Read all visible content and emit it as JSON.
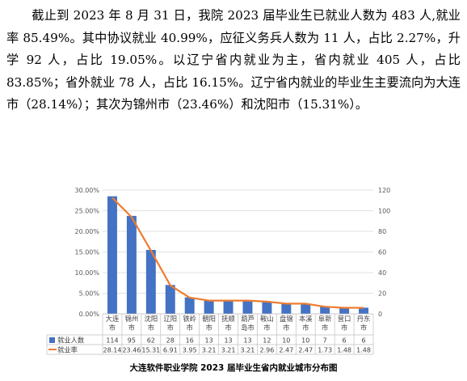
{
  "document": {
    "paragraph": "截止到 2023 年 8 月 31 日，我院 2023 届毕业生已就业人数为 483 人,就业率 85.49%。其中协议就业 40.99%，应征义务兵人数为 11 人，占比 2.27%，升学 92 人，占比 19.05%。以辽宁省内就业为主，省内就业 405 人，占比 83.85%；省外就业 78 人，占比 16.15%。辽宁省内就业的毕业生主要流向为大连市（28.14%）；其次为锦州市（23.46%）和沈阳市（15.31%）。",
    "caption": "大连软件职业学院 2023 届毕业生省内就业城市分布图"
  },
  "chart_data": {
    "type": "bar",
    "categories": [
      "大连市",
      "锦州市",
      "沈阳市",
      "辽阳市",
      "铁岭市",
      "朝阳市",
      "抚顺市",
      "葫芦岛市",
      "鞍山市",
      "盘锦市",
      "本溪市",
      "阜新市",
      "营口市",
      "丹东市"
    ],
    "category_lines": [
      [
        "大连",
        "市"
      ],
      [
        "锦州",
        "市"
      ],
      [
        "沈阳",
        "市"
      ],
      [
        "辽阳",
        "市"
      ],
      [
        "铁岭",
        "市"
      ],
      [
        "朝阳",
        "市"
      ],
      [
        "抚顺",
        "市"
      ],
      [
        "葫芦",
        "岛市"
      ],
      [
        "鞍山",
        "市"
      ],
      [
        "盘锦",
        "市"
      ],
      [
        "本溪",
        "市"
      ],
      [
        "阜新",
        "市"
      ],
      [
        "营口",
        "市"
      ],
      [
        "丹东",
        "市"
      ]
    ],
    "series": [
      {
        "name": "就业人数",
        "type": "bar",
        "axis": "right",
        "color": "#4472c4",
        "values": [
          114,
          95,
          62,
          28,
          16,
          13,
          13,
          13,
          12,
          10,
          10,
          7,
          6,
          6
        ],
        "labels": [
          "114",
          "95",
          "62",
          "28",
          "16",
          "13",
          "13",
          "13",
          "12",
          "10",
          "10",
          "7",
          "6",
          "6"
        ]
      },
      {
        "name": "就业率",
        "type": "line",
        "axis": "left",
        "color": "#ed7d31",
        "values": [
          28.14,
          23.46,
          15.31,
          6.91,
          3.95,
          3.21,
          3.21,
          3.21,
          2.96,
          2.47,
          2.47,
          1.73,
          1.48,
          1.48
        ],
        "labels": [
          "28.14",
          "23.46",
          "15.31",
          "6.91",
          "3.95",
          "3.21",
          "3.21",
          "3.21",
          "2.96",
          "2.47",
          "2.47",
          "1.73",
          "1.48",
          "1.48"
        ]
      }
    ],
    "left_axis": {
      "min": 0,
      "max": 30,
      "ticks": [
        "0.00%",
        "5.00%",
        "10.00%",
        "15.00%",
        "20.00%",
        "25.00%",
        "30.00%"
      ]
    },
    "right_axis": {
      "min": 0,
      "max": 120,
      "ticks": [
        "0",
        "20",
        "40",
        "60",
        "80",
        "100",
        "120"
      ]
    },
    "grid": true,
    "legend": "data-table"
  }
}
